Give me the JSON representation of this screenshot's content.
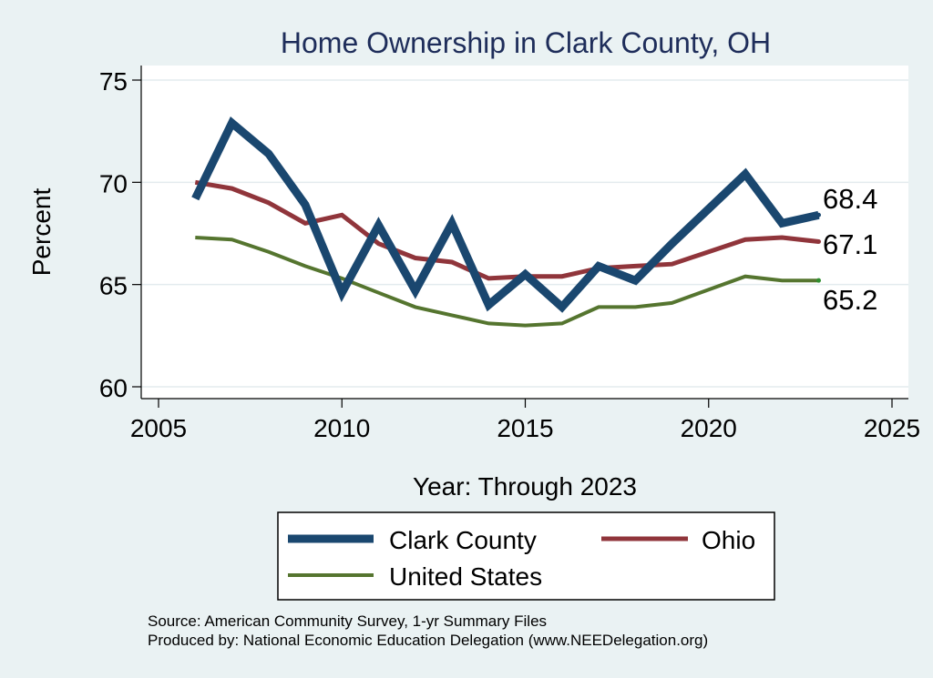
{
  "chart_data": {
    "type": "line",
    "title": "Home Ownership in Clark County, OH",
    "xlabel": "Year: Through 2023",
    "ylabel": "Percent",
    "xlim": [
      2005,
      2025
    ],
    "ylim": [
      60,
      75
    ],
    "x_ticks": [
      "2005",
      "2010",
      "2015",
      "2020",
      "2025"
    ],
    "y_ticks": [
      "75",
      "70",
      "65",
      "60"
    ],
    "x": [
      2006,
      2007,
      2008,
      2009,
      2010,
      2011,
      2012,
      2013,
      2014,
      2015,
      2016,
      2017,
      2018,
      2019,
      2021,
      2022,
      2023
    ],
    "series": [
      {
        "name": "Clark County",
        "color": "#1a476f",
        "values": [
          69.2,
          72.9,
          71.4,
          68.9,
          64.6,
          67.9,
          64.7,
          68.0,
          64.0,
          65.5,
          63.9,
          65.9,
          65.2,
          67.0,
          70.4,
          68.0,
          68.4
        ],
        "end_label": "68.4"
      },
      {
        "name": "Ohio",
        "color": "#90353b",
        "values": [
          70.0,
          69.7,
          69.0,
          68.0,
          68.4,
          67.0,
          66.3,
          66.1,
          65.3,
          65.4,
          65.4,
          65.8,
          65.9,
          66.0,
          67.2,
          67.3,
          67.1
        ],
        "end_label": "67.1"
      },
      {
        "name": "United States",
        "color": "#55752f",
        "values": [
          67.3,
          67.2,
          66.6,
          65.9,
          65.3,
          64.6,
          63.9,
          63.5,
          63.1,
          63.0,
          63.1,
          63.9,
          63.9,
          64.1,
          65.4,
          65.2,
          65.2
        ],
        "end_label": "65.2"
      }
    ],
    "legend": {
      "position": "bottom",
      "entries": [
        "Clark County",
        "Ohio",
        "United States"
      ]
    },
    "grid": true
  },
  "footer": {
    "source": "Source: American Community Survey, 1-yr Summary Files",
    "producer": "Produced by: National Economic Education Delegation (www.NEEDelegation.org)"
  }
}
